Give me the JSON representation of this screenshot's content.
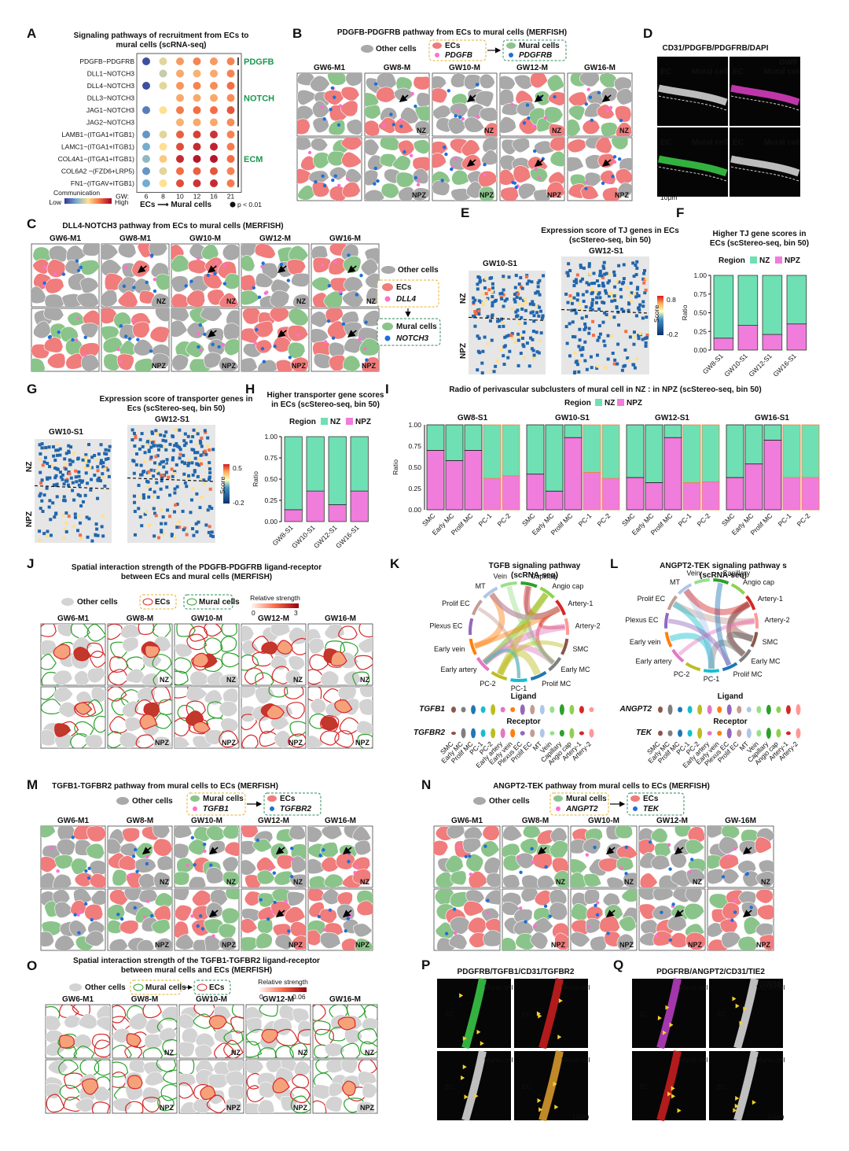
{
  "colors": {
    "ec": "#f07c7c",
    "mural": "#8bc48a",
    "other": "#a9a9a9",
    "nz": "#6fe0b3",
    "npz": "#f07cdc",
    "pink_dot": "#ff6fcf",
    "blue_dot": "#1e6fd9",
    "nz_label": "#1e88e5",
    "npz_label": "#f5a623",
    "group_label": "#1a9850"
  },
  "panel_labels": [
    "A",
    "B",
    "C",
    "D",
    "E",
    "F",
    "G",
    "H",
    "I",
    "J",
    "K",
    "L",
    "M",
    "N",
    "O",
    "P",
    "Q"
  ],
  "panelA": {
    "title1": "Signaling pathways of recruitment from ECs to",
    "title2": "mural cells (scRNA-seq)",
    "rows": [
      "PDGFB−PDGFRB",
      "DLL1−NOTCH3",
      "DLL4−NOTCH3",
      "DLL3−NOTCH3",
      "JAG1−NOTCH3",
      "JAG2−NOTCH3",
      "LAMB1−(ITGA1+ITGB1)",
      "LAMC1−(ITGA1+ITGB1)",
      "COL4A1−(ITGA1+ITGB1)",
      "COL6A2 −(FZD6+LRP5)",
      "FN1−(ITGAV+ITGB1)"
    ],
    "gw_label": "GW:",
    "cols": [
      "6",
      "8",
      "10",
      "12",
      "16",
      "21"
    ],
    "groups": [
      "PDGFB",
      "NOTCH",
      "ECM"
    ],
    "legend_title": "Communication",
    "legend_low": "Low",
    "legend_high": "High",
    "direction": "ECs ⟶ Mural cells",
    "pval": "p < 0.01"
  },
  "panelB": {
    "title": "PDGFB-PDGFRB pathway from ECs to mural cells (MERFISH)",
    "other": "Other cells",
    "ecs": "ECs",
    "ligand": "PDGFB",
    "mural": "Mural cells",
    "receptor": "PDGFRB",
    "stages": [
      "GW6-M1",
      "GW8-M",
      "GW10-M",
      "GW12-M",
      "GW16-M"
    ]
  },
  "panelC": {
    "title": "DLL4-NOTCH3 pathway from ECs  to mural cells (MERFISH)",
    "stages": [
      "GW6-M1",
      "GW8-M1",
      "GW10-M",
      "GW12-M",
      "GW16-M"
    ],
    "other": "Other cells",
    "ecs": "ECs",
    "ligand": "DLL4",
    "mural": "Mural cells",
    "receptor": "NOTCH3"
  },
  "panelD": {
    "title": "CD31/PDGFB/PDGFRB/DAPI",
    "stage": "GW8",
    "ec": "EC",
    "mural": "Mural cell",
    "scale": "10μm"
  },
  "panelE": {
    "title1": "Expression score of TJ genes in ECs",
    "title2": "(scStereo-seq, bin 50)",
    "s1": "GW10-S1",
    "s2": "GW12-S1",
    "score": "Score",
    "max": "0.8",
    "min": "-0.2"
  },
  "panelF": {
    "title1": "Higher TJ gene scores in",
    "title2": "ECs (scStereo-seq, bin 50)",
    "ylabel": "Ratio",
    "region": "Region"
  },
  "panelG": {
    "title1": "Expression score of transporter genes in",
    "title2": "Ecs (scStereo-seq, bin 50)",
    "s1": "GW10-S1",
    "s2": "GW12-S1",
    "score": "Score",
    "max": "0.5",
    "min": "-0.2"
  },
  "panelH": {
    "title1": "Higher transporter gene scores",
    "title2": "in ECs (scStereo-seq, bin 50)",
    "ylabel": "Ratio",
    "region": "Region"
  },
  "panelI": {
    "title": "Radio of perivascular subclusters of mural cell in NZ : in NPZ (scStereo-seq, bin 50)",
    "region": "Region",
    "ylabel": "Ratio"
  },
  "panelJ": {
    "title1": "Spatial interaction strength of the PDGFB-PDGFRB ligand-receptor",
    "title2": "between ECs and mural cells (MERFISH)",
    "other": "Other cells",
    "ecs": "ECs",
    "mural": "Mural cells",
    "strength": "Relative strength",
    "min": "0",
    "max": "3",
    "stages": [
      "GW6-M1",
      "GW8-M",
      "GW10-M",
      "GW12-M",
      "GW16-M"
    ]
  },
  "panelK": {
    "title1": "TGFB signaling pathway",
    "title2": "(scRNA-seq)",
    "ligand_gene": "TGFB1",
    "receptor_gene": "TGFBR2"
  },
  "panelL": {
    "title1": "ANGPT2-TEK signaling pathway s",
    "title2": "(scRNA-seq)",
    "ligand_gene": "ANGPT2",
    "receptor_gene": "TEK"
  },
  "chord_labels": [
    "Capillary",
    "Angio cap",
    "Artery-1",
    "Artery-2",
    "SMC",
    "Early MC",
    "Prolif MC",
    "PC-1",
    "PC-2",
    "Early artery",
    "Early vein",
    "Plexus EC",
    "Prolif EC",
    "MT",
    "Vein"
  ],
  "violin": {
    "ligand": "Ligand",
    "receptor": "Receptor",
    "cats": [
      "SMC",
      "Early MC",
      "Prolif MC",
      "PC-1",
      "PC-2",
      "Early artery",
      "Early vein",
      "Plexus EC",
      "Prolif EC",
      "MT",
      "Vein",
      "Capillary",
      "Angio cap",
      "Artery-1",
      "Artery-2"
    ]
  },
  "panelM": {
    "title": "TGFB1-TGFBR2 pathway from mural cells to ECs (MERFISH)",
    "other": "Other cells",
    "mural": "Mural cells",
    "ligand": "TGFB1",
    "ecs": "ECs",
    "receptor": "TGFBR2",
    "stages": [
      "GW6-M1",
      "GW8-M",
      "GW10-M",
      "GW12-M",
      "GW16-M"
    ]
  },
  "panelN": {
    "title": "ANGPT2-TEK pathway from mural cells to ECs (MERFISH)",
    "other": "Other cells",
    "mural": "Mural cells",
    "ligand": "ANGPT2",
    "ecs": "ECs",
    "receptor": "TEK",
    "stages": [
      "GW6-M1",
      "GW8-M",
      "GW10-M",
      "GW12-M",
      "GW-16M"
    ]
  },
  "panelO": {
    "title1": "Spatial interaction strength of the TGFB1-TGFBR2 ligand-receptor",
    "title2": "between mural cells and ECs (MERFISH)",
    "other": "Other cells",
    "mural": "Mural cells",
    "ecs": "ECs",
    "strength": "Relative strength",
    "min": "0",
    "max": "0.06",
    "stages": [
      "GW6-M1",
      "GW8-M",
      "GW10-M",
      "GW12-M",
      "GW16-M"
    ]
  },
  "panelP": {
    "title": "PDGFRB/TGFB1/CD31/TGFBR2",
    "ec": "EC",
    "mural": "Mural cell",
    "scale": "10μm"
  },
  "panelQ": {
    "title": "PDGFRB/ANGPT2/CD31/TIE2",
    "stage": "GW16",
    "ec": "EC",
    "mural": "Mural cell",
    "scale": "10μm"
  },
  "zones": {
    "nz": "NZ",
    "npz": "NPZ"
  },
  "chart_data": [
    {
      "type": "heatmap",
      "panel": "A",
      "title": "Signaling pathways of recruitment from ECs to mural cells (scRNA-seq)",
      "x": [
        "6",
        "8",
        "10",
        "12",
        "16",
        "21"
      ],
      "y": [
        "PDGFB−PDGFRB",
        "DLL1−NOTCH3",
        "DLL4−NOTCH3",
        "DLL3−NOTCH3",
        "JAG1−NOTCH3",
        "JAG2−NOTCH3",
        "LAMB1−(ITGA1+ITGB1)",
        "LAMC1−(ITGA1+ITGB1)",
        "COL4A1−(ITGA1+ITGB1)",
        "COL6A2 −(FZD6+LRP5)",
        "FN1−(ITGAV+ITGB1)"
      ],
      "values": [
        [
          0.05,
          0.45,
          0.65,
          0.7,
          0.65,
          0.7
        ],
        [
          null,
          0.4,
          0.62,
          0.6,
          0.62,
          0.7
        ],
        [
          0.05,
          0.45,
          0.66,
          0.7,
          0.68,
          0.75
        ],
        [
          null,
          null,
          0.62,
          0.62,
          0.62,
          0.68
        ],
        [
          0.15,
          0.5,
          0.72,
          0.75,
          0.75,
          0.8
        ],
        [
          null,
          null,
          0.6,
          0.62,
          0.62,
          0.68
        ],
        [
          0.2,
          0.45,
          0.78,
          0.85,
          0.88,
          0.7
        ],
        [
          0.25,
          0.5,
          0.82,
          0.9,
          0.92,
          0.72
        ],
        [
          0.3,
          0.55,
          0.9,
          0.95,
          0.95,
          0.75
        ],
        [
          0.2,
          0.45,
          0.75,
          0.78,
          0.8,
          0.7
        ],
        [
          0.25,
          0.5,
          0.82,
          0.88,
          0.9,
          0.72
        ]
      ]
    },
    {
      "type": "bar",
      "panel": "F",
      "title": "Higher TJ gene scores in ECs (scStereo-seq, bin 50)",
      "categories": [
        "GW8-S1",
        "GW10-S1",
        "GW12-S1",
        "GW16-S1"
      ],
      "series": [
        {
          "name": "NZ",
          "values": [
            0.84,
            0.67,
            0.79,
            0.65
          ]
        },
        {
          "name": "NPZ",
          "values": [
            0.16,
            0.33,
            0.21,
            0.35
          ]
        }
      ],
      "ylabel": "Ratio",
      "ylim": [
        0,
        1
      ]
    },
    {
      "type": "bar",
      "panel": "H",
      "title": "Higher transporter gene scores in ECs (scStereo-seq, bin 50)",
      "categories": [
        "GW8-S1",
        "GW10-S1",
        "GW12-S1",
        "GW16-S1"
      ],
      "series": [
        {
          "name": "NZ",
          "values": [
            0.86,
            0.64,
            0.8,
            0.64
          ]
        },
        {
          "name": "NPZ",
          "values": [
            0.14,
            0.36,
            0.2,
            0.36
          ]
        }
      ],
      "ylabel": "Ratio",
      "ylim": [
        0,
        1
      ]
    },
    {
      "type": "bar",
      "panel": "I",
      "title": "Radio of perivascular subclusters of mural cell in NZ : in NPZ (scStereo-seq, bin 50)",
      "categories": [
        "SMC",
        "Early MC",
        "Prolif MC",
        "PC-1",
        "PC-2"
      ],
      "groups": [
        {
          "name": "GW8-S1",
          "npz": [
            0.7,
            0.58,
            0.7,
            0.37,
            0.4
          ]
        },
        {
          "name": "GW10-S1",
          "npz": [
            0.42,
            0.22,
            0.85,
            0.44,
            0.37
          ]
        },
        {
          "name": "GW12-S1",
          "npz": [
            0.38,
            0.32,
            0.85,
            0.32,
            0.33
          ]
        },
        {
          "name": "GW16-S1",
          "npz": [
            0.38,
            0.54,
            0.82,
            0.38,
            0.38
          ]
        }
      ],
      "ylabel": "Ratio",
      "ylim": [
        0,
        1
      ]
    }
  ]
}
